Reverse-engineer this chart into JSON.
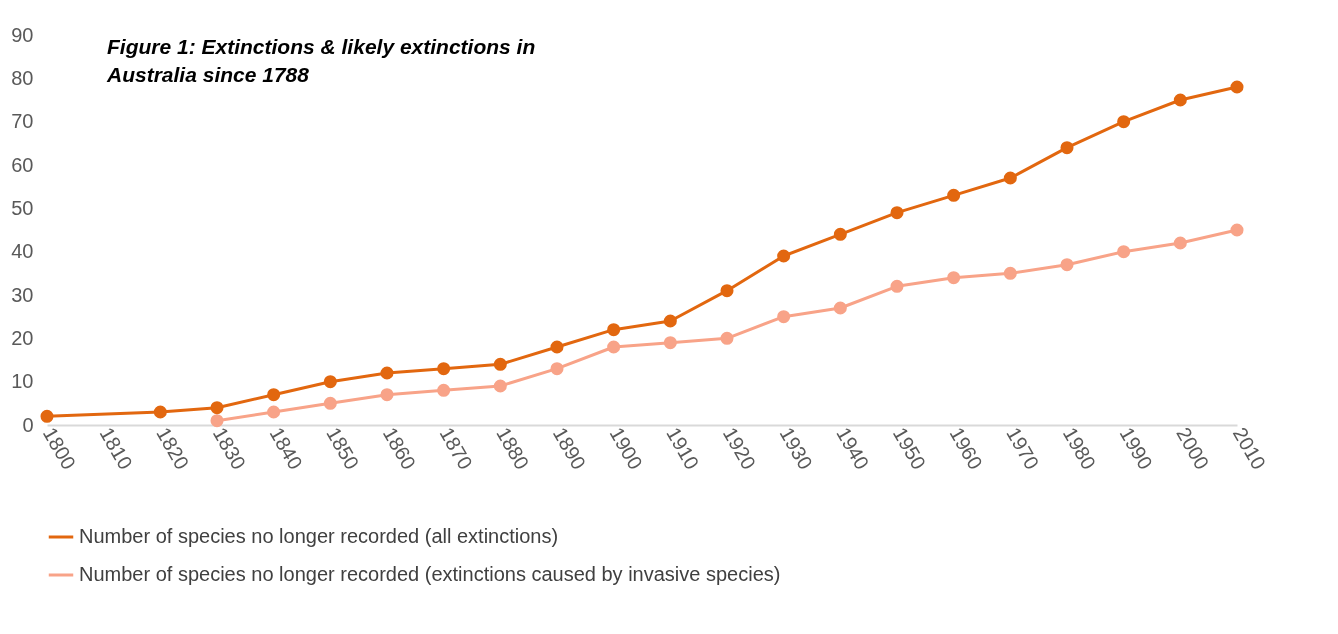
{
  "chart_data": {
    "type": "line",
    "title": "Figure 1: Extinctions & likely extinctions in Australia since 1788",
    "xlim": [
      1800,
      2010
    ],
    "xticks": [
      1800,
      1810,
      1820,
      1830,
      1840,
      1850,
      1860,
      1870,
      1880,
      1890,
      1900,
      1910,
      1920,
      1930,
      1940,
      1950,
      1960,
      1970,
      1980,
      1990,
      2000,
      2010
    ],
    "ylim": [
      0,
      90
    ],
    "yticks": [
      0,
      10,
      20,
      30,
      40,
      50,
      60,
      70,
      80,
      90
    ],
    "grid": false,
    "legend": "bottom",
    "marker": "circle",
    "line_style": "solid",
    "series": [
      {
        "name": "Number of species no longer recorded (all extinctions)",
        "color": "#e2670f",
        "x": [
          1800,
          1820,
          1830,
          1840,
          1850,
          1860,
          1870,
          1880,
          1890,
          1900,
          1910,
          1920,
          1930,
          1940,
          1950,
          1960,
          1970,
          1980,
          1990,
          2000,
          2010
        ],
        "values": [
          2,
          3,
          4,
          7,
          10,
          12,
          13,
          14,
          18,
          22,
          24,
          31,
          39,
          44,
          49,
          53,
          57,
          64,
          70,
          75,
          78
        ]
      },
      {
        "name": "Number of species no longer recorded (extinctions caused by invasive species)",
        "color": "#f8a388",
        "x": [
          1830,
          1840,
          1850,
          1860,
          1870,
          1880,
          1890,
          1900,
          1910,
          1920,
          1930,
          1940,
          1950,
          1960,
          1970,
          1980,
          1990,
          2000,
          2010
        ],
        "values": [
          1,
          3,
          5,
          7,
          8,
          9,
          13,
          18,
          19,
          20,
          25,
          27,
          32,
          34,
          35,
          37,
          40,
          42,
          45
        ]
      }
    ]
  }
}
